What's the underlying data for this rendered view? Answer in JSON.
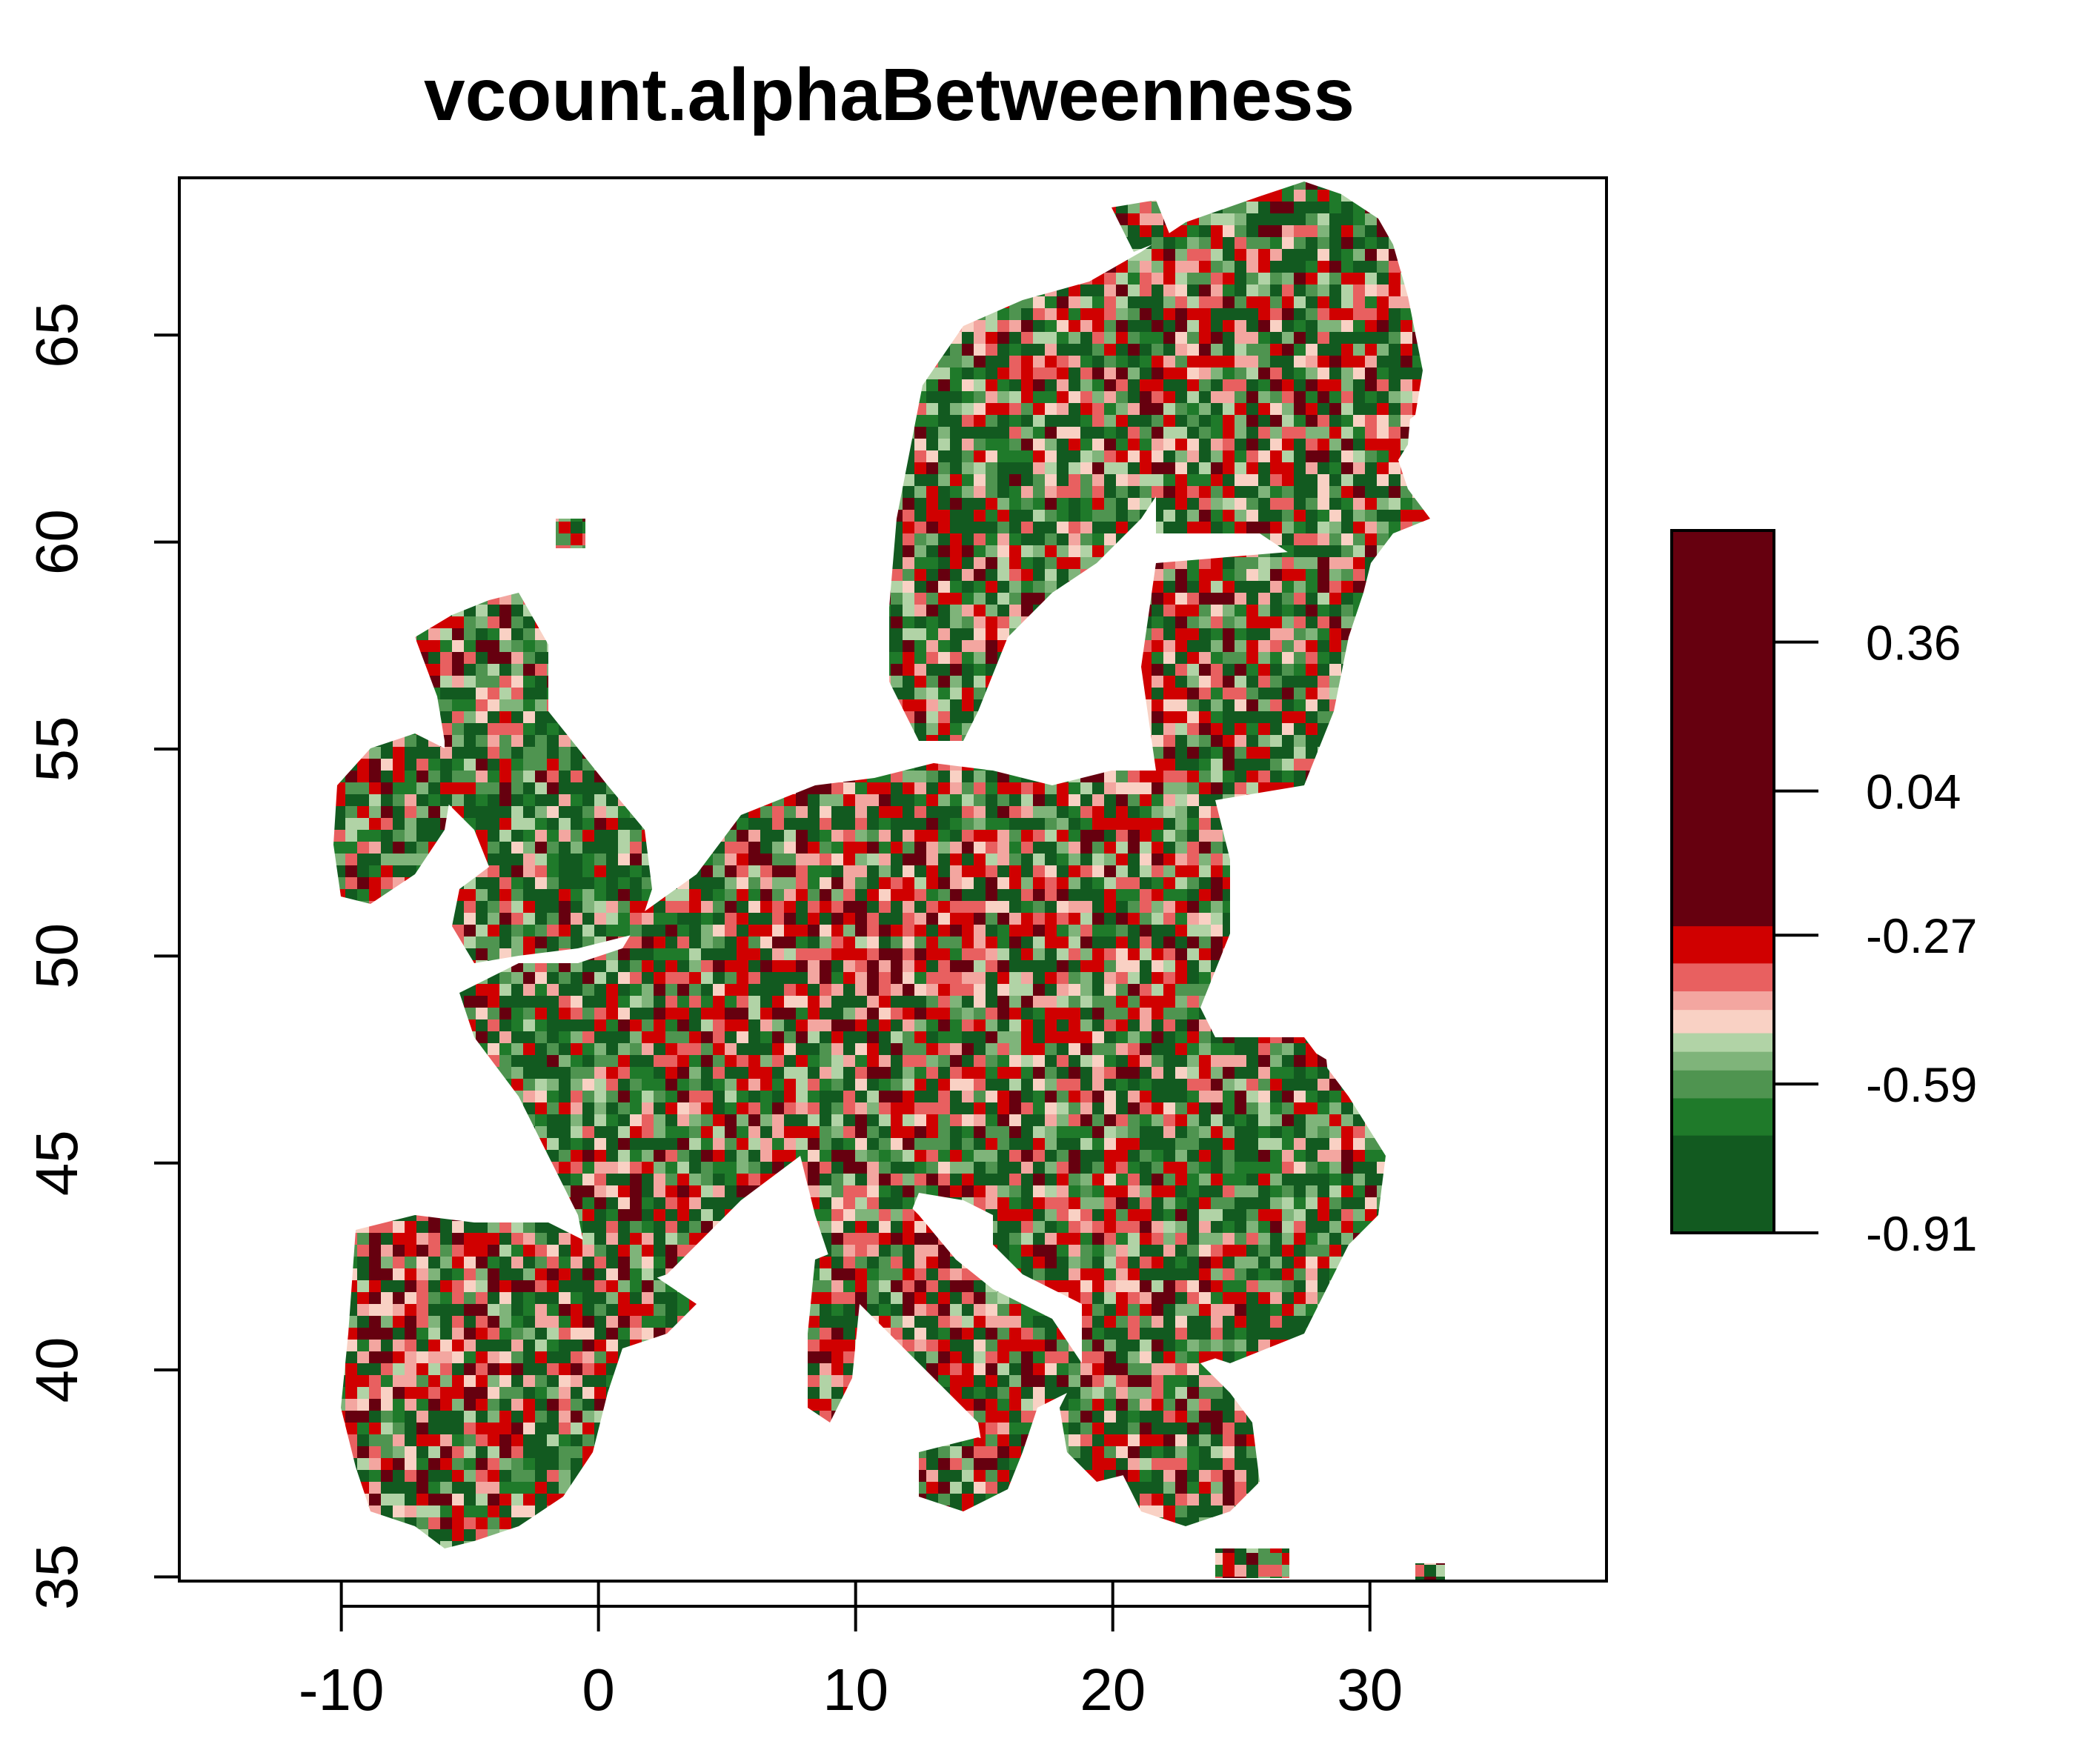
{
  "chart_data": {
    "type": "heatmap",
    "title": "vcount.alphaBetweenness",
    "xlabel": "",
    "ylabel": "",
    "x_ticks": [
      -10,
      0,
      10,
      20,
      30
    ],
    "y_ticks": [
      35,
      40,
      45,
      50,
      55,
      60,
      65
    ],
    "xlim": [
      -16.3,
      39.2
    ],
    "ylim": [
      34.9,
      68.8
    ],
    "legend": {
      "placement": "right",
      "ticks": [
        "0.36",
        "0.04",
        "-0.27",
        "-0.59",
        "-0.91"
      ],
      "range": [
        -0.91,
        0.6
      ],
      "bands": [
        {
          "from": -0.91,
          "to": -0.7,
          "color": "#125a20"
        },
        {
          "from": -0.7,
          "to": -0.62,
          "color": "#1f7a2a"
        },
        {
          "from": -0.62,
          "to": -0.56,
          "color": "#4f9450"
        },
        {
          "from": -0.56,
          "to": -0.52,
          "color": "#7fb47a"
        },
        {
          "from": -0.52,
          "to": -0.48,
          "color": "#b1d3a6"
        },
        {
          "from": -0.48,
          "to": -0.43,
          "color": "#f9d1c4"
        },
        {
          "from": -0.43,
          "to": -0.39,
          "color": "#f3a6a0"
        },
        {
          "from": -0.39,
          "to": -0.33,
          "color": "#e86060"
        },
        {
          "from": -0.33,
          "to": -0.25,
          "color": "#d00000"
        },
        {
          "from": -0.25,
          "to": 0.6,
          "color": "#66000f"
        }
      ]
    },
    "grid": false,
    "colors": {
      "dark_red": "#66000f",
      "red": "#d00000",
      "light_red": "#e86060",
      "pink": "#f3a6a0",
      "blush": "#f9d1c4",
      "pale_green": "#b1d3a6",
      "light_green": "#7fb47a",
      "mid_green": "#4f9450",
      "green": "#1f7a2a",
      "dark_green": "#125a20"
    }
  }
}
